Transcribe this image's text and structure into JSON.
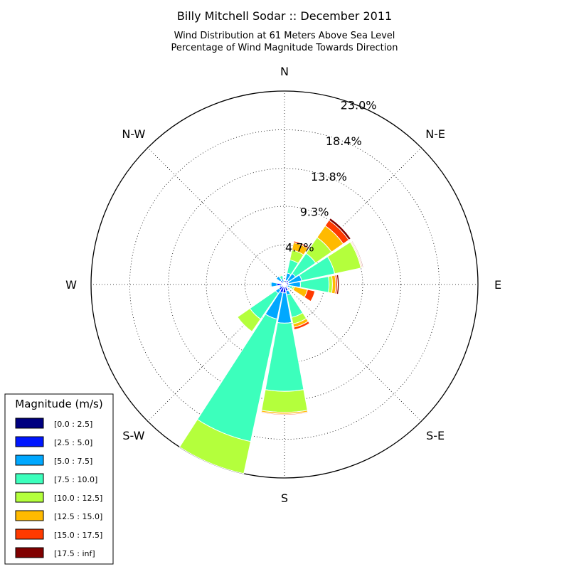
{
  "chart_data": {
    "type": "windrose",
    "title": "Billy Mitchell Sodar :: December 2011",
    "subtitle_lines": [
      "Wind Distribution at 61 Meters Above Sea Level",
      "Percentage of Wind Magnitude Towards Direction"
    ],
    "directions": [
      "N",
      "N-E",
      "E",
      "S-E",
      "S",
      "S-W",
      "W",
      "N-W"
    ],
    "radial_unit": "%",
    "radial_max": 23.0,
    "radial_ticks": [
      4.7,
      9.3,
      13.8,
      18.4,
      23.0
    ],
    "radial_tick_labels": [
      "4.7%",
      "9.3%",
      "13.8%",
      "18.4%",
      "23.0%"
    ],
    "grid": true,
    "legend": {
      "title": "Magnitude (m/s)",
      "placement": "lower-left",
      "bins": [
        {
          "label": "[0.0 : 2.5]",
          "color": "#000080"
        },
        {
          "label": "[2.5 : 5.0]",
          "color": "#0016ff"
        },
        {
          "label": "[5.0 : 7.5]",
          "color": "#00a8ff"
        },
        {
          "label": "[7.5 : 10.0]",
          "color": "#3cffbc"
        },
        {
          "label": "[10.0 : 12.5]",
          "color": "#b4ff3c"
        },
        {
          "label": "[12.5 : 15.0]",
          "color": "#ffba00"
        },
        {
          "label": "[15.0 : 17.5]",
          "color": "#ff3a00"
        },
        {
          "label": "[17.5 : inf]",
          "color": "#800000"
        }
      ]
    },
    "sector_width_deg": 22.5,
    "sectors": [
      {
        "direction_deg": 0,
        "cumulative_pct": [
          0.1,
          0.1,
          0.2,
          0.2,
          0.2,
          0.2,
          0.2,
          0.2
        ]
      },
      {
        "direction_deg": 22.5,
        "cumulative_pct": [
          0.2,
          0.5,
          1.4,
          3.0,
          4.2,
          5.1,
          5.3,
          5.3
        ]
      },
      {
        "direction_deg": 45,
        "cumulative_pct": [
          0.3,
          0.6,
          1.6,
          4.5,
          6.8,
          8.5,
          9.3,
          9.6
        ]
      },
      {
        "direction_deg": 67.5,
        "cumulative_pct": [
          0.2,
          0.5,
          2.1,
          6.1,
          9.3,
          9.4,
          9.5,
          9.6
        ]
      },
      {
        "direction_deg": 90,
        "cumulative_pct": [
          0.2,
          0.5,
          1.9,
          5.3,
          5.7,
          6.1,
          6.3,
          6.5
        ]
      },
      {
        "direction_deg": 112.5,
        "cumulative_pct": [
          0.2,
          0.4,
          0.7,
          1.0,
          1.2,
          2.8,
          3.7,
          3.7
        ]
      },
      {
        "direction_deg": 135,
        "cumulative_pct": [
          0.1,
          0.2,
          0.2,
          0.3,
          0.3,
          0.3,
          0.3,
          0.3
        ]
      },
      {
        "direction_deg": 157.5,
        "cumulative_pct": [
          0.3,
          0.8,
          1.3,
          4.0,
          4.8,
          5.2,
          5.5,
          5.5
        ]
      },
      {
        "direction_deg": 180,
        "cumulative_pct": [
          0.3,
          1.0,
          4.6,
          12.7,
          15.2,
          15.4,
          15.5,
          15.5
        ]
      },
      {
        "direction_deg": 202.5,
        "cumulative_pct": [
          0.3,
          1.0,
          4.2,
          19.1,
          23.0,
          23.0,
          23.0,
          23.0
        ]
      },
      {
        "direction_deg": 225,
        "cumulative_pct": [
          0.2,
          0.8,
          1.3,
          5.0,
          6.8,
          6.8,
          6.8,
          6.8
        ]
      },
      {
        "direction_deg": 247.5,
        "cumulative_pct": [
          0.2,
          0.4,
          0.6,
          0.7,
          0.7,
          0.7,
          0.7,
          0.7
        ]
      },
      {
        "direction_deg": 270,
        "cumulative_pct": [
          0.3,
          0.9,
          1.6,
          1.7,
          1.7,
          1.7,
          1.7,
          1.7
        ]
      },
      {
        "direction_deg": 292.5,
        "cumulative_pct": [
          0.1,
          0.2,
          0.2,
          0.2,
          0.2,
          0.2,
          0.2,
          0.2
        ]
      },
      {
        "direction_deg": 315,
        "cumulative_pct": [
          0.2,
          0.6,
          1.2,
          1.2,
          1.2,
          1.2,
          1.2,
          1.2
        ]
      },
      {
        "direction_deg": 337.5,
        "cumulative_pct": [
          0.1,
          0.3,
          0.7,
          1.1,
          1.2,
          1.3,
          1.3,
          1.3
        ]
      }
    ]
  }
}
